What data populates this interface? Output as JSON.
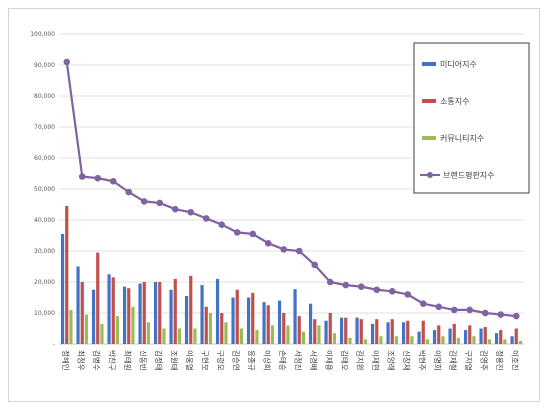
{
  "chart_data": {
    "type": "bar",
    "ylim": [
      0,
      100000
    ],
    "yticks": [
      "-",
      "10,000",
      "20,000",
      "30,000",
      "40,000",
      "50,000",
      "60,000",
      "70,000",
      "80,000",
      "90,000",
      "100,000"
    ],
    "grid": true,
    "legend_position": "right",
    "categories": [
      "정해인",
      "최정우",
      "김병수",
      "박찬구",
      "최태원",
      "신동빈",
      "김정태",
      "조원태",
      "이웅열",
      "구현모",
      "구광모",
      "김승연",
      "윤종규",
      "이상희",
      "손태승",
      "서정진",
      "서경배",
      "이재용",
      "김태오",
      "김지완",
      "이재현",
      "조양래",
      "신창재",
      "박현주",
      "이명희",
      "김재철",
      "구자열",
      "김영주",
      "정용진",
      "이호진"
    ],
    "series": [
      {
        "name": "미디어지수",
        "type": "bar",
        "color": "#4472c4",
        "values": [
          35500,
          25000,
          17500,
          22500,
          18500,
          19500,
          20000,
          17500,
          15500,
          19000,
          21000,
          15000,
          15000,
          13500,
          14000,
          17700,
          13000,
          7500,
          8500,
          8500,
          6500,
          7000,
          7000,
          4000,
          4500,
          5000,
          4500,
          5000,
          3500,
          2500
        ]
      },
      {
        "name": "소통지수",
        "type": "bar",
        "color": "#c0504d",
        "values": [
          44500,
          20000,
          29500,
          21500,
          18000,
          20000,
          20000,
          21000,
          22000,
          12000,
          10000,
          17500,
          16500,
          12500,
          10000,
          9000,
          8000,
          10000,
          8500,
          8000,
          8000,
          8000,
          7500,
          7500,
          6000,
          6500,
          6000,
          5500,
          4500,
          5000
        ]
      },
      {
        "name": "커뮤니티지수",
        "type": "bar",
        "color": "#9bbb59",
        "values": [
          11000,
          9500,
          6500,
          9000,
          12000,
          7000,
          5000,
          5000,
          5000,
          10000,
          7000,
          5000,
          4500,
          6000,
          6000,
          4000,
          6000,
          3500,
          2000,
          1500,
          2500,
          2500,
          2500,
          1500,
          2500,
          2000,
          2500,
          1500,
          1500,
          1000
        ]
      },
      {
        "name": "브랜드평판지수",
        "type": "line",
        "color": "#8064a2",
        "values": [
          91000,
          54000,
          53500,
          52500,
          49000,
          46000,
          45500,
          43500,
          42500,
          40500,
          38500,
          36000,
          35500,
          32500,
          30500,
          30000,
          25500,
          20000,
          19000,
          18500,
          17500,
          17000,
          16000,
          13000,
          12000,
          11000,
          11000,
          10000,
          9500,
          9000
        ]
      }
    ]
  }
}
